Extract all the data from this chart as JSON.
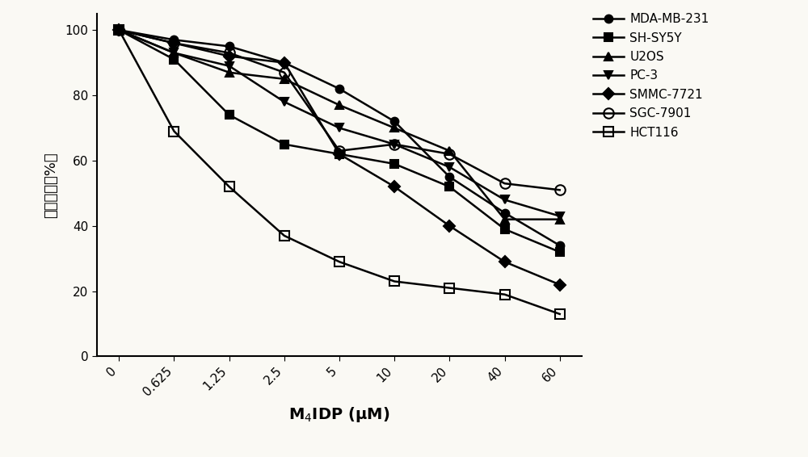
{
  "x_values": [
    0,
    0.625,
    1.25,
    2.5,
    5,
    10,
    20,
    40,
    60
  ],
  "series": [
    {
      "name": "MDA-MB-231",
      "y": [
        100,
        97,
        95,
        90,
        82,
        72,
        55,
        44,
        34
      ],
      "marker": "o",
      "fillstyle": "full",
      "markersize": 7,
      "label": "MDA-MB-231"
    },
    {
      "name": "SH-SY5Y",
      "y": [
        100,
        91,
        74,
        65,
        62,
        59,
        52,
        39,
        32
      ],
      "marker": "s",
      "fillstyle": "full",
      "markersize": 7,
      "label": "SH-SY5Y"
    },
    {
      "name": "U2OS",
      "y": [
        100,
        93,
        87,
        85,
        77,
        70,
        63,
        42,
        42
      ],
      "marker": "^",
      "fillstyle": "full",
      "markersize": 7,
      "label": "U2OS"
    },
    {
      "name": "PC-3",
      "y": [
        100,
        93,
        89,
        78,
        70,
        65,
        58,
        48,
        43
      ],
      "marker": "v",
      "fillstyle": "full",
      "markersize": 7,
      "label": "PC-3"
    },
    {
      "name": "SMMC-7721",
      "y": [
        100,
        96,
        92,
        90,
        62,
        52,
        40,
        29,
        22
      ],
      "marker": "D",
      "fillstyle": "full",
      "markersize": 7,
      "label": "SMMC-7721"
    },
    {
      "name": "SGC-7901",
      "y": [
        100,
        96,
        93,
        87,
        63,
        65,
        62,
        53,
        51
      ],
      "marker": "o",
      "fillstyle": "none",
      "markersize": 9,
      "label": "SGC-7901"
    },
    {
      "name": "HCT116",
      "y": [
        100,
        69,
        52,
        37,
        29,
        23,
        21,
        19,
        13
      ],
      "marker": "s",
      "fillstyle": "none",
      "markersize": 8,
      "label": "HCT116"
    }
  ],
  "xlabel": "M$_4$IDP (μM)",
  "ylabel": "细胞活力（%）",
  "ylim": [
    0,
    105
  ],
  "yticks": [
    0,
    20,
    40,
    60,
    80,
    100
  ],
  "xtick_labels": [
    "0",
    "0.625",
    "1.25",
    "2.5",
    "5",
    "10",
    "20",
    "40",
    "60"
  ],
  "background_color": "#faf9f4",
  "linewidth": 1.8,
  "color": "#000000"
}
